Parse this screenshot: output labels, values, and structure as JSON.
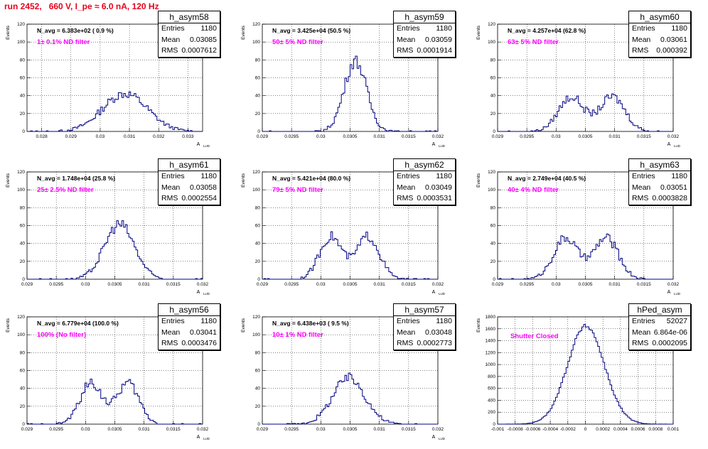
{
  "run_title": "run 2452,   660 V, I_pe ≈ 6.0 nA, 120 Hz",
  "chart_data": [
    {
      "type": "histogram",
      "name": "h_asym58",
      "navg": "N_avg = 6.383e+02 ( 0.9 %)",
      "note": "1± 0.1% ND filter",
      "stats": {
        "Entries": "1180",
        "Mean": "0.03085",
        "RMS": "0.0007612"
      },
      "xlim": [
        0.0275,
        0.0335
      ],
      "ylim": [
        0,
        120
      ],
      "xticks": [
        "0.028",
        "0.029",
        "0.03",
        "0.031",
        "0.032",
        "0.033"
      ],
      "yticks": [
        "0",
        "20",
        "40",
        "60",
        "80",
        "100",
        "120"
      ],
      "ylabel": "Events",
      "xlabel": "A",
      "mean": 0.03085,
      "rms": 0.0007612,
      "peak": 46
    },
    {
      "type": "histogram",
      "name": "h_asym59",
      "navg": "N_avg = 3.425e+04 (50.5 %)",
      "note": "50± 5% ND filter",
      "stats": {
        "Entries": "1180",
        "Mean": "0.03059",
        "RMS": "0.0001914"
      },
      "xlim": [
        0.029,
        0.032
      ],
      "ylim": [
        0,
        120
      ],
      "xticks": [
        "0.029",
        "0.0295",
        "0.03",
        "0.0305",
        "0.031",
        "0.0315",
        "0.032"
      ],
      "yticks": [
        "0",
        "20",
        "40",
        "60",
        "80",
        "100",
        "120"
      ],
      "ylabel": "Events",
      "xlabel": "A",
      "mean": 0.03059,
      "rms": 0.0001914,
      "peak": 86
    },
    {
      "type": "histogram",
      "name": "h_asym60",
      "navg": "N_avg = 4.257e+04 (62.8 %)",
      "note": "63± 5% ND filter",
      "stats": {
        "Entries": "1180",
        "Mean": "0.03061",
        "RMS": "0.000392"
      },
      "xlim": [
        0.029,
        0.032
      ],
      "ylim": [
        0,
        120
      ],
      "xticks": [
        "0.029",
        "0.0295",
        "0.03",
        "0.0305",
        "0.031",
        "0.0315",
        "0.032"
      ],
      "yticks": [
        "0",
        "20",
        "40",
        "60",
        "80",
        "100",
        "120"
      ],
      "ylabel": "Events",
      "xlabel": "A",
      "mean": 0.03061,
      "rms": 0.000392,
      "peak": 42,
      "bimodal": true
    },
    {
      "type": "histogram",
      "name": "h_asym61",
      "navg": "N_avg = 1.748e+04 (25.8 %)",
      "note": "25± 2.5% ND filter",
      "stats": {
        "Entries": "1180",
        "Mean": "0.03058",
        "RMS": "0.0002554"
      },
      "xlim": [
        0.029,
        0.032
      ],
      "ylim": [
        0,
        120
      ],
      "xticks": [
        "0.029",
        "0.0295",
        "0.03",
        "0.0305",
        "0.031",
        "0.0315",
        "0.032"
      ],
      "yticks": [
        "0",
        "20",
        "40",
        "60",
        "80",
        "100",
        "120"
      ],
      "ylabel": "Events",
      "xlabel": "A",
      "mean": 0.03058,
      "rms": 0.0002554,
      "peak": 67
    },
    {
      "type": "histogram",
      "name": "h_asym62",
      "navg": "N_avg = 5.421e+04 (80.0 %)",
      "note": "79± 5% ND filter",
      "stats": {
        "Entries": "1180",
        "Mean": "0.03049",
        "RMS": "0.0003531"
      },
      "xlim": [
        0.029,
        0.032
      ],
      "ylim": [
        0,
        120
      ],
      "xticks": [
        "0.029",
        "0.0295",
        "0.03",
        "0.0305",
        "0.031",
        "0.0315",
        "0.032"
      ],
      "yticks": [
        "0",
        "20",
        "40",
        "60",
        "80",
        "100",
        "120"
      ],
      "ylabel": "Events",
      "xlabel": "A",
      "mean": 0.03049,
      "rms": 0.0003531,
      "peak": 52,
      "bimodal": true
    },
    {
      "type": "histogram",
      "name": "h_asym63",
      "navg": "N_avg = 2.749e+04 (40.5 %)",
      "note": "40± 4% ND filter",
      "stats": {
        "Entries": "1180",
        "Mean": "0.03051",
        "RMS": "0.0003828"
      },
      "xlim": [
        0.029,
        0.032
      ],
      "ylim": [
        0,
        120
      ],
      "xticks": [
        "0.029",
        "0.0295",
        "0.03",
        "0.0305",
        "0.031",
        "0.0315",
        "0.032"
      ],
      "yticks": [
        "0",
        "20",
        "40",
        "60",
        "80",
        "100",
        "120"
      ],
      "ylabel": "Events",
      "xlabel": "A",
      "mean": 0.03051,
      "rms": 0.0003828,
      "peak": 50,
      "bimodal": true
    },
    {
      "type": "histogram",
      "name": "h_asym56",
      "navg": "N_avg = 6.779e+04 (100.0 %)",
      "note": "100% (No filter)",
      "stats": {
        "Entries": "1180",
        "Mean": "0.03041",
        "RMS": "0.0003476"
      },
      "xlim": [
        0.029,
        0.032
      ],
      "ylim": [
        0,
        120
      ],
      "xticks": [
        "0.029",
        "0.0295",
        "0.03",
        "0.0305",
        "0.031",
        "0.0315",
        "0.032"
      ],
      "yticks": [
        "0",
        "20",
        "40",
        "60",
        "80",
        "100",
        "120"
      ],
      "ylabel": "Events",
      "xlabel": "A",
      "mean": 0.03041,
      "rms": 0.0003476,
      "peak": 50,
      "bimodal": true
    },
    {
      "type": "histogram",
      "name": "h_asym57",
      "navg": "N_avg = 6.438e+03 ( 9.5 %)",
      "note": "10± 1% ND filter",
      "stats": {
        "Entries": "1180",
        "Mean": "0.03048",
        "RMS": "0.0002773"
      },
      "xlim": [
        0.029,
        0.032
      ],
      "ylim": [
        0,
        120
      ],
      "xticks": [
        "0.029",
        "0.0295",
        "0.03",
        "0.0305",
        "0.031",
        "0.0315",
        "0.032"
      ],
      "yticks": [
        "0",
        "20",
        "40",
        "60",
        "80",
        "100",
        "120"
      ],
      "ylabel": "Events",
      "xlabel": "A",
      "mean": 0.03048,
      "rms": 0.0002773,
      "peak": 56
    },
    {
      "type": "histogram",
      "name": "hPed_asym",
      "navg": "",
      "note": "Shutter Closed",
      "stats": {
        "Entries": "52027",
        "Mean": "6.864e-06",
        "RMS": "0.0002095"
      },
      "xlim": [
        -0.001,
        0.001
      ],
      "ylim": [
        0,
        1800
      ],
      "xticks": [
        "-0.001",
        "-0.0008",
        "-0.0006",
        "-0.0004",
        "-0.0002",
        "0",
        "0.0002",
        "0.0004",
        "0.0006",
        "0.0008",
        "0.001"
      ],
      "yticks": [
        "0",
        "200",
        "400",
        "600",
        "800",
        "1000",
        "1200",
        "1400",
        "1600",
        "1800"
      ],
      "ylabel": "Events",
      "xlabel": "",
      "mean": 6.864e-06,
      "rms": 0.0002095,
      "peak": 1790
    }
  ]
}
